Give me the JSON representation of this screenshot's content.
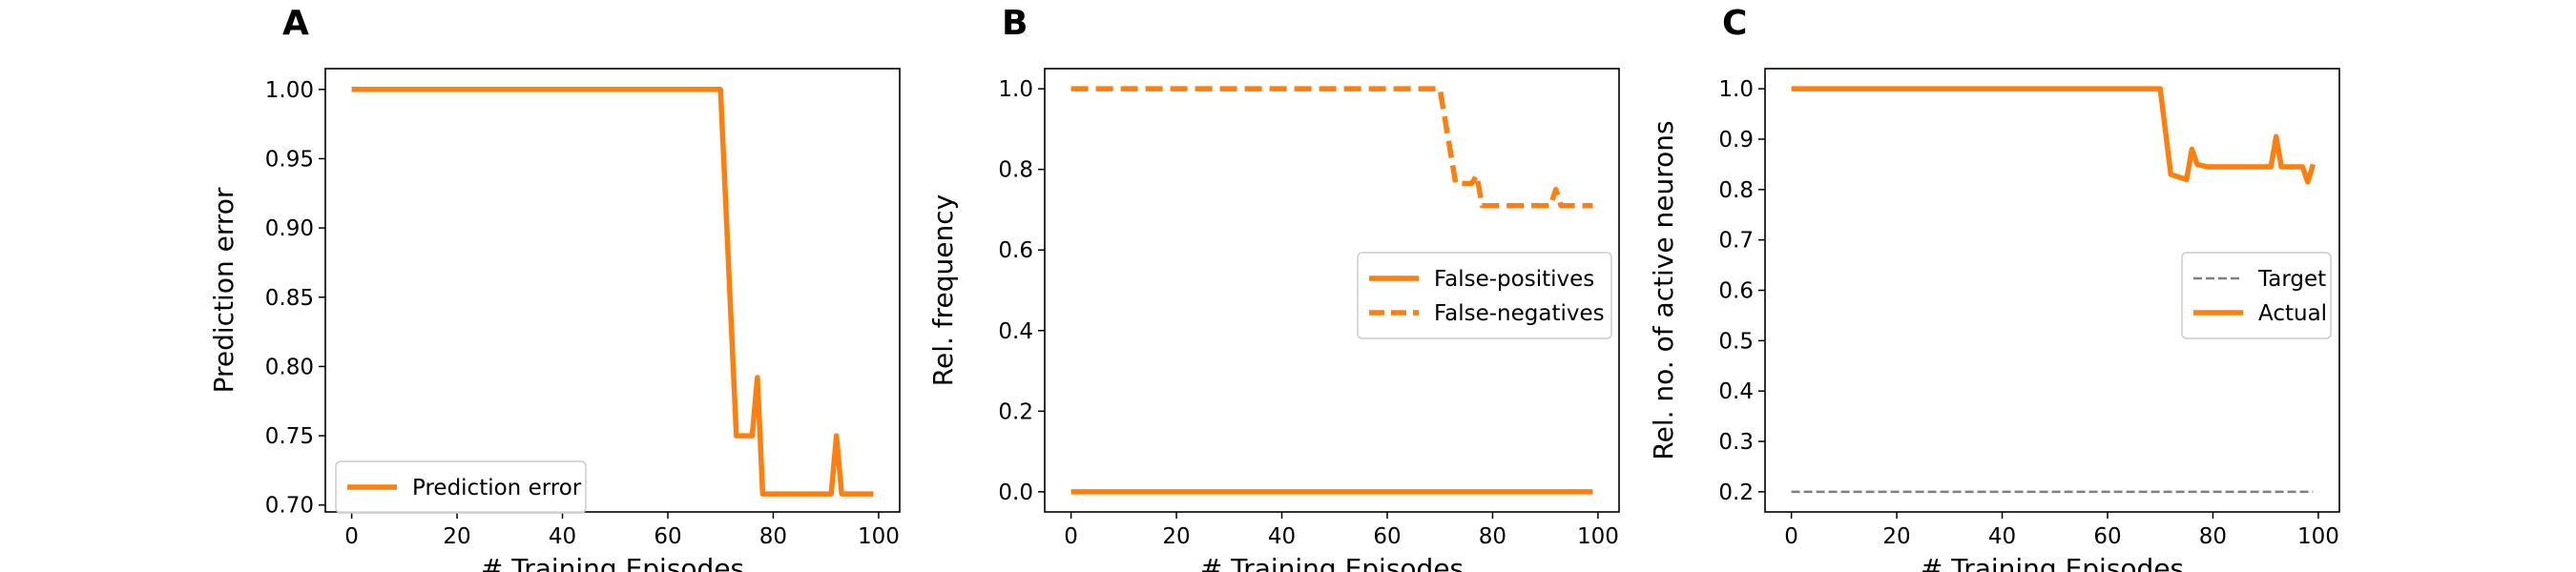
{
  "colors": {
    "orange": "#ff7f0e",
    "grey": "#808080",
    "legend_frame": "#cccccc",
    "axes": "#000000"
  },
  "chart_data": [
    {
      "panel_letter": "A",
      "type": "line",
      "title": "",
      "xlabel": "# Training Episodes",
      "ylabel": "Prediction error",
      "xlim": [
        -5,
        104
      ],
      "ylim": [
        0.695,
        1.015
      ],
      "xticks": [
        0,
        20,
        40,
        60,
        80,
        100
      ],
      "xtick_labels": [
        "0",
        "20",
        "40",
        "60",
        "80",
        "100"
      ],
      "yticks": [
        0.7,
        0.75,
        0.8,
        0.85,
        0.9,
        0.95,
        1.0
      ],
      "ytick_labels": [
        "0.70",
        "0.75",
        "0.80",
        "0.85",
        "0.90",
        "0.95",
        "1.00"
      ],
      "grid": false,
      "legend_position": "lower-left",
      "series": [
        {
          "name": "Prediction error",
          "color": "#ff7f0e",
          "style": "solid",
          "x": [
            0,
            70,
            73,
            76,
            77,
            78,
            91,
            92,
            93,
            99
          ],
          "y": [
            1.0,
            1.0,
            0.75,
            0.75,
            0.792,
            0.708,
            0.708,
            0.75,
            0.708,
            0.708
          ]
        }
      ]
    },
    {
      "panel_letter": "B",
      "type": "line",
      "title": "",
      "xlabel": "# Training Episodes",
      "ylabel": "Rel. frequency",
      "xlim": [
        -5,
        104
      ],
      "ylim": [
        -0.05,
        1.05
      ],
      "xticks": [
        0,
        20,
        40,
        60,
        80,
        100
      ],
      "xtick_labels": [
        "0",
        "20",
        "40",
        "60",
        "80",
        "100"
      ],
      "yticks": [
        0.0,
        0.2,
        0.4,
        0.6,
        0.8,
        1.0
      ],
      "ytick_labels": [
        "0.0",
        "0.2",
        "0.4",
        "0.6",
        "0.8",
        "1.0"
      ],
      "grid": false,
      "legend_position": "center-right",
      "series": [
        {
          "name": "False-positives",
          "color": "#ff7f0e",
          "style": "solid",
          "x": [
            0,
            99
          ],
          "y": [
            0.0,
            0.0
          ]
        },
        {
          "name": "False-negatives",
          "color": "#ff7f0e",
          "style": "dashed",
          "x": [
            0,
            70,
            73,
            76,
            77,
            78,
            91,
            92,
            93,
            99
          ],
          "y": [
            1.0,
            1.0,
            0.765,
            0.765,
            0.785,
            0.71,
            0.71,
            0.75,
            0.71,
            0.71
          ]
        }
      ]
    },
    {
      "panel_letter": "C",
      "type": "line",
      "title": "",
      "xlabel": "# Training Episodes",
      "ylabel": "Rel. no. of active neurons",
      "xlim": [
        -5,
        104
      ],
      "ylim": [
        0.16,
        1.04
      ],
      "xticks": [
        0,
        20,
        40,
        60,
        80,
        100
      ],
      "xtick_labels": [
        "0",
        "20",
        "40",
        "60",
        "80",
        "100"
      ],
      "yticks": [
        0.2,
        0.3,
        0.4,
        0.5,
        0.6,
        0.7,
        0.8,
        0.9,
        1.0
      ],
      "ytick_labels": [
        "0.2",
        "0.3",
        "0.4",
        "0.5",
        "0.6",
        "0.7",
        "0.8",
        "0.9",
        "1.0"
      ],
      "grid": false,
      "legend_position": "center-right",
      "series": [
        {
          "name": "Target",
          "color": "#808080",
          "style": "dashed-thin",
          "x": [
            0,
            99
          ],
          "y": [
            0.2,
            0.2
          ]
        },
        {
          "name": "Actual",
          "color": "#ff7f0e",
          "style": "solid",
          "x": [
            0,
            70,
            72,
            75,
            76,
            77,
            79,
            91,
            92,
            93,
            97,
            98,
            99
          ],
          "y": [
            1.0,
            1.0,
            0.83,
            0.82,
            0.88,
            0.85,
            0.845,
            0.845,
            0.905,
            0.845,
            0.845,
            0.815,
            0.85
          ]
        }
      ]
    }
  ]
}
